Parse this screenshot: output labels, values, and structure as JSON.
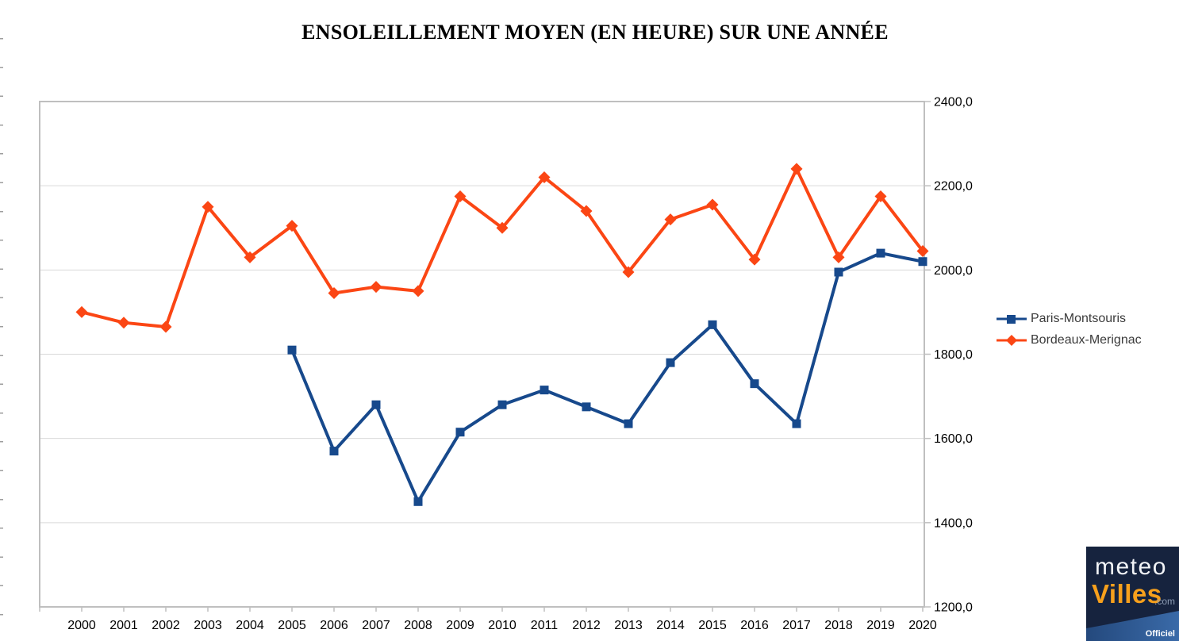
{
  "title": "ENSOLEILLEMENT MOYEN (EN HEURE) SUR UNE ANNÉE",
  "chart_data": {
    "type": "line",
    "categories": [
      "2000",
      "2001",
      "2002",
      "2003",
      "2004",
      "2005",
      "2006",
      "2007",
      "2008",
      "2009",
      "2010",
      "2011",
      "2012",
      "2013",
      "2014",
      "2015",
      "2016",
      "2017",
      "2018",
      "2019",
      "2020"
    ],
    "series": [
      {
        "name": "Paris-Montsouris",
        "color": "#17498C",
        "marker": "square",
        "values": [
          null,
          null,
          null,
          null,
          null,
          1810,
          1570,
          1680,
          1450,
          1615,
          1680,
          1715,
          1675,
          1635,
          1780,
          1870,
          1730,
          1635,
          1995,
          2040,
          2020
        ]
      },
      {
        "name": "Bordeaux-Merignac",
        "color": "#FB4614",
        "marker": "diamond",
        "values": [
          1900,
          1875,
          1865,
          2150,
          2030,
          2105,
          1945,
          1960,
          1950,
          2175,
          2100,
          2220,
          2140,
          1995,
          2120,
          2155,
          2025,
          2240,
          2030,
          2175,
          2045
        ]
      }
    ],
    "title": "ENSOLEILLEMENT MOYEN (EN HEURE) SUR UNE ANNÉE",
    "xlabel": "",
    "ylabel": "",
    "ylim": [
      1200,
      2400
    ],
    "ytick_step": 200,
    "ytick_labels": [
      "1200,0",
      "1400,0",
      "1600,0",
      "1800,0",
      "2000,0",
      "2200,0",
      "2400,0"
    ],
    "grid": true,
    "y_axis_side": "right",
    "legend_position": "right-middle",
    "grid_color": "#D9D9D9",
    "axis_color": "#BFBFBF"
  },
  "logo": {
    "word1": "meteo",
    "word2": "Villes",
    "suffix": ".com",
    "badge": "Officiel",
    "bg_color": "#16233E",
    "accent_color": "#F7A01C"
  }
}
